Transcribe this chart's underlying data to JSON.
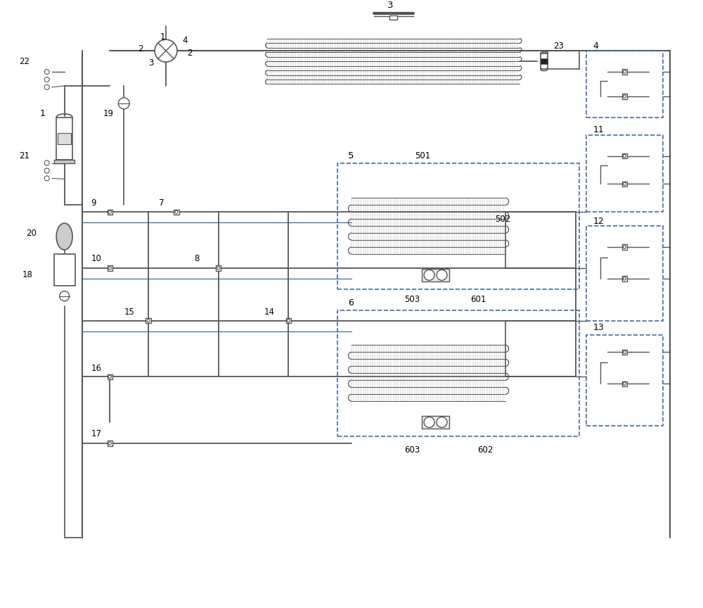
{
  "bg_color": "#ffffff",
  "line_color": "#555555",
  "blue_line_color": "#4466aa",
  "dashed_box_color": "#4466aa",
  "figsize": [
    10.0,
    8.64
  ],
  "dpi": 100
}
